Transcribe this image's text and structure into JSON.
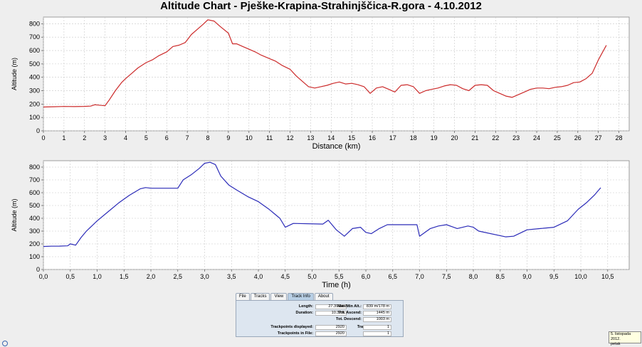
{
  "title": "Altitude Chart - Pješke-Krapina-Strahinjščica-R.gora - 4.10.2012",
  "chart_data": [
    {
      "type": "line",
      "title": "Altitude Chart - Pješke-Krapina-Strahinjščica-R.gora - 4.10.2012",
      "xlabel": "Distance (km)",
      "ylabel": "Altitude (m)",
      "xlim": [
        0,
        28.5
      ],
      "ylim": [
        0,
        850
      ],
      "xticks": [
        "0",
        "1",
        "2",
        "3",
        "4",
        "5",
        "6",
        "7",
        "8",
        "9",
        "10",
        "11",
        "12",
        "13",
        "14",
        "15",
        "16",
        "17",
        "18",
        "19",
        "20",
        "21",
        "22",
        "23",
        "24",
        "25",
        "26",
        "27",
        "28"
      ],
      "yticks": [
        "0",
        "100",
        "200",
        "300",
        "400",
        "500",
        "600",
        "700",
        "800"
      ],
      "grid": true,
      "color": "#cc2b2b",
      "series": [
        {
          "x": [
            0,
            0.5,
            1,
            1.5,
            2,
            2.3,
            2.5,
            2.8,
            3,
            3.2,
            3.5,
            3.8,
            4,
            4.3,
            4.6,
            5,
            5.3,
            5.6,
            6,
            6.3,
            6.6,
            6.9,
            7.2,
            7.5,
            7.8,
            8,
            8.3,
            8.6,
            9,
            9.2,
            9.4,
            9.7,
            10,
            10.3,
            10.6,
            11,
            11.3,
            11.6,
            12,
            12.3,
            12.6,
            12.9,
            13.2,
            13.5,
            13.8,
            14.1,
            14.4,
            14.7,
            15,
            15.3,
            15.6,
            15.9,
            16.2,
            16.5,
            16.8,
            17.1,
            17.4,
            17.7,
            18,
            18.3,
            18.6,
            18.9,
            19.2,
            19.5,
            19.8,
            20.1,
            20.4,
            20.7,
            21,
            21.3,
            21.6,
            21.9,
            22.2,
            22.5,
            22.8,
            23.1,
            23.4,
            23.7,
            24,
            24.3,
            24.6,
            24.9,
            25.2,
            25.5,
            25.8,
            26.1,
            26.4,
            26.7,
            27,
            27.39
          ],
          "y": [
            178,
            180,
            182,
            181,
            183,
            185,
            195,
            190,
            188,
            230,
            300,
            360,
            390,
            430,
            470,
            510,
            530,
            560,
            590,
            630,
            640,
            660,
            720,
            760,
            800,
            830,
            820,
            780,
            730,
            650,
            650,
            630,
            610,
            590,
            565,
            540,
            520,
            490,
            460,
            410,
            370,
            330,
            320,
            330,
            340,
            355,
            365,
            350,
            355,
            345,
            330,
            280,
            320,
            330,
            310,
            290,
            340,
            345,
            330,
            280,
            300,
            310,
            320,
            335,
            345,
            340,
            315,
            300,
            340,
            345,
            340,
            300,
            280,
            260,
            250,
            270,
            290,
            310,
            320,
            320,
            315,
            325,
            330,
            340,
            360,
            365,
            390,
            430,
            530,
            639
          ]
        }
      ]
    },
    {
      "type": "line",
      "xlabel": "Time (h)",
      "ylabel": "Altitude (m)",
      "xlim": [
        0,
        10.9
      ],
      "ylim": [
        0,
        850
      ],
      "xticks": [
        "0,0",
        "0,5",
        "1,0",
        "1,5",
        "2,0",
        "2,5",
        "3,0",
        "3,5",
        "4,0",
        "4,5",
        "5,0",
        "5,5",
        "6,0",
        "6,5",
        "7,0",
        "7,5",
        "8,0",
        "8,5",
        "9,0",
        "9,5",
        "10,0",
        "10,5"
      ],
      "yticks": [
        "0",
        "100",
        "200",
        "300",
        "400",
        "500",
        "600",
        "700",
        "800"
      ],
      "grid": true,
      "color": "#2b2bb8",
      "series": [
        {
          "x": [
            0,
            0.15,
            0.3,
            0.45,
            0.5,
            0.6,
            0.7,
            0.8,
            0.9,
            1.0,
            1.2,
            1.4,
            1.6,
            1.8,
            1.9,
            2.0,
            2.5,
            2.6,
            2.75,
            2.9,
            3.0,
            3.1,
            3.2,
            3.3,
            3.45,
            3.6,
            3.8,
            4.0,
            4.2,
            4.4,
            4.5,
            4.65,
            5.2,
            5.3,
            5.45,
            5.6,
            5.75,
            5.9,
            6.0,
            6.1,
            6.25,
            6.4,
            6.95,
            7.0,
            7.2,
            7.35,
            7.5,
            7.7,
            7.9,
            8.0,
            8.1,
            8.6,
            8.75,
            9.0,
            9.25,
            9.5,
            9.75,
            9.95,
            10.1,
            10.25,
            10.37
          ],
          "y": [
            180,
            182,
            183,
            185,
            200,
            190,
            250,
            300,
            340,
            380,
            450,
            520,
            580,
            630,
            640,
            635,
            635,
            700,
            740,
            790,
            830,
            838,
            820,
            730,
            660,
            620,
            570,
            530,
            470,
            400,
            330,
            360,
            355,
            385,
            310,
            260,
            320,
            330,
            290,
            280,
            320,
            350,
            350,
            260,
            320,
            340,
            350,
            320,
            340,
            330,
            300,
            255,
            260,
            310,
            320,
            330,
            380,
            470,
            520,
            580,
            639
          ]
        }
      ]
    }
  ],
  "tabs": [
    "File",
    "Tracks",
    "View",
    "Track Info",
    "About"
  ],
  "active_tab": "Track Info",
  "info": {
    "length_label": "Length:",
    "length_value": "27.39 km",
    "duration_label": "Duration:",
    "duration_value": "10.37 h",
    "maxmin_label": "Max/Min Alt.:",
    "maxmin_value": "839 m/178 m",
    "ascend_label": "Tot. Ascend:",
    "ascend_value": "1445 m",
    "descend_label": "Tot. Descend:",
    "descend_value": "1003 m",
    "trackpoints_displayed_label": "Trackpoints displayed:",
    "trackpoints_displayed_value": "2920",
    "trackpoints_file_label": "Trackpoints in File:",
    "trackpoints_file_value": "2920",
    "tracks_displayed_label": "Tracks displayed:",
    "tracks_displayed_value": "1",
    "tracks_file_label": "Tracks in File:",
    "tracks_file_value": "1"
  },
  "clock": {
    "date": "5. listopada 2012.",
    "day": "petak"
  }
}
